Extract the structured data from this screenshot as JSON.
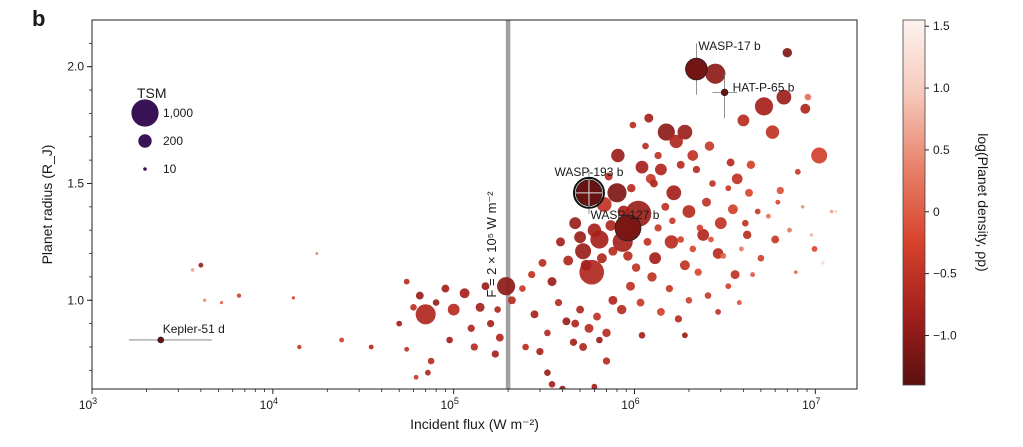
{
  "panel_label": "b",
  "chart_data": {
    "type": "scatter",
    "xlabel": "Incident flux (W m⁻²)",
    "ylabel": "Planet radius (R_J)",
    "x_scale": "log",
    "xlim": [
      1000,
      17000000
    ],
    "ylim": [
      0.62,
      2.2
    ],
    "x_ticks": [
      {
        "value": 1000,
        "base": "10",
        "exp": "3"
      },
      {
        "value": 10000,
        "base": "10",
        "exp": "4"
      },
      {
        "value": 100000,
        "base": "10",
        "exp": "5"
      },
      {
        "value": 1000000,
        "base": "10",
        "exp": "6"
      },
      {
        "value": 10000000,
        "base": "10",
        "exp": "7"
      }
    ],
    "y_ticks": [
      "1.0",
      "1.5",
      "2.0"
    ],
    "colorbar": {
      "label": "log(Planet density, ρp)",
      "range": [
        -1.4,
        1.55
      ],
      "ticks": [
        "1.5",
        "1.0",
        "0.5",
        "0",
        "−0.5",
        "−1.0"
      ],
      "colors": [
        "#5a1010",
        "#a5201c",
        "#d8452e",
        "#e9836c",
        "#f6c9bc",
        "#fdf3ef"
      ]
    },
    "size_legend": {
      "title": "TSM",
      "entries": [
        {
          "label": "1,000",
          "tsm": 1000
        },
        {
          "label": "200",
          "tsm": 200
        },
        {
          "label": "10",
          "tsm": 10
        }
      ],
      "color": "#3a1356"
    },
    "reference_line": {
      "x": 200000,
      "label": "F = 2 × 10⁵ W m⁻²",
      "color": "#a0a0a0"
    },
    "highlighted": [
      {
        "name": "WASP-17 b",
        "x": 2200000,
        "y": 1.99,
        "tsm": 600,
        "logrho": -1.2
      },
      {
        "name": "HAT-P-65 b",
        "x": 3150000,
        "y": 1.89,
        "tsm": 40,
        "logrho": -1.25
      },
      {
        "name": "WASP-193 b",
        "x": 560000,
        "y": 1.46,
        "tsm": 900,
        "logrho": -1.3
      },
      {
        "name": "WASP-127 b",
        "x": 920000,
        "y": 1.31,
        "tsm": 900,
        "logrho": -1.15
      },
      {
        "name": "Kepler-51 d",
        "x": 2400,
        "y": 0.83,
        "tsm": 30,
        "logrho": -1.3
      }
    ],
    "points": [
      [
        2800000,
        1.97,
        500,
        -1.0
      ],
      [
        7000000,
        2.06,
        90,
        -1.1
      ],
      [
        6700000,
        1.87,
        250,
        -0.9
      ],
      [
        5200000,
        1.83,
        400,
        -0.8
      ],
      [
        8800000,
        1.82,
        100,
        -0.7
      ],
      [
        9100000,
        1.87,
        40,
        0.2
      ],
      [
        10500000,
        1.62,
        300,
        -0.3
      ],
      [
        5800000,
        1.72,
        200,
        -0.5
      ],
      [
        4000000,
        1.77,
        150,
        -0.6
      ],
      [
        1900000,
        1.72,
        250,
        -0.9
      ],
      [
        1500000,
        1.72,
        350,
        -1.0
      ],
      [
        1200000,
        1.78,
        80,
        -0.8
      ],
      [
        980000,
        1.75,
        40,
        -0.6
      ],
      [
        1700000,
        1.68,
        200,
        -0.7
      ],
      [
        2100000,
        1.62,
        120,
        -0.5
      ],
      [
        2600000,
        1.66,
        90,
        -0.4
      ],
      [
        3400000,
        1.59,
        60,
        -0.6
      ],
      [
        4400000,
        1.58,
        70,
        -0.3
      ],
      [
        3700000,
        1.52,
        120,
        -0.5
      ],
      [
        1400000,
        1.56,
        150,
        -0.7
      ],
      [
        1100000,
        1.57,
        180,
        -0.8
      ],
      [
        810000,
        1.62,
        200,
        -0.9
      ],
      [
        720000,
        1.53,
        60,
        -0.6
      ],
      [
        680000,
        1.41,
        250,
        -0.5
      ],
      [
        800000,
        1.46,
        450,
        -1.1
      ],
      [
        1230000,
        1.52,
        100,
        -0.4
      ],
      [
        1650000,
        1.46,
        250,
        -0.8
      ],
      [
        2000000,
        1.38,
        180,
        -0.6
      ],
      [
        2500000,
        1.42,
        80,
        -0.5
      ],
      [
        3000000,
        1.33,
        150,
        -0.5
      ],
      [
        3500000,
        1.39,
        100,
        -0.3
      ],
      [
        4300000,
        1.46,
        60,
        -0.2
      ],
      [
        6400000,
        1.47,
        50,
        -0.1
      ],
      [
        8000000,
        1.55,
        30,
        -0.4
      ],
      [
        12300000,
        1.38,
        10,
        0.6
      ],
      [
        9900000,
        1.22,
        30,
        -0.2
      ],
      [
        7800000,
        1.12,
        10,
        0.1
      ],
      [
        6000000,
        1.26,
        60,
        -0.4
      ],
      [
        5000000,
        1.18,
        40,
        -0.3
      ],
      [
        4200000,
        1.28,
        70,
        -0.6
      ],
      [
        3600000,
        1.11,
        80,
        -0.5
      ],
      [
        2900000,
        1.2,
        120,
        -0.6
      ],
      [
        2400000,
        1.28,
        150,
        -0.7
      ],
      [
        1900000,
        1.15,
        100,
        -0.5
      ],
      [
        1600000,
        1.25,
        200,
        -0.6
      ],
      [
        1300000,
        1.18,
        150,
        -0.8
      ],
      [
        1050000,
        1.37,
        900,
        -0.9
      ],
      [
        860000,
        1.25,
        500,
        -0.8
      ],
      [
        640000,
        1.26,
        400,
        -0.8
      ],
      [
        580000,
        1.12,
        800,
        -0.7
      ],
      [
        520000,
        1.21,
        300,
        -0.9
      ],
      [
        470000,
        1.33,
        150,
        -0.9
      ],
      [
        430000,
        1.17,
        100,
        -0.7
      ],
      [
        390000,
        1.25,
        80,
        -0.8
      ],
      [
        350000,
        1.08,
        80,
        -0.9
      ],
      [
        310000,
        1.16,
        60,
        -0.6
      ],
      [
        270000,
        1.11,
        50,
        -0.5
      ],
      [
        240000,
        1.05,
        40,
        -0.4
      ],
      [
        210000,
        1.0,
        60,
        -0.6
      ],
      [
        195000,
        1.06,
        400,
        -1.0
      ],
      [
        175000,
        0.96,
        40,
        -0.7
      ],
      [
        160000,
        0.9,
        50,
        -0.8
      ],
      [
        150000,
        1.06,
        60,
        -0.9
      ],
      [
        140000,
        0.97,
        80,
        -0.8
      ],
      [
        125000,
        0.88,
        50,
        -0.7
      ],
      [
        115000,
        1.03,
        100,
        -0.8
      ],
      [
        100000,
        0.96,
        150,
        -0.6
      ],
      [
        90000,
        1.05,
        60,
        -0.8
      ],
      [
        80000,
        0.99,
        40,
        -0.9
      ],
      [
        70000,
        0.94,
        500,
        -0.7
      ],
      [
        65000,
        1.02,
        60,
        -0.9
      ],
      [
        60000,
        0.97,
        40,
        -0.5
      ],
      [
        55000,
        1.08,
        30,
        -0.6
      ],
      [
        50000,
        0.9,
        30,
        -0.8
      ],
      [
        280000,
        0.94,
        60,
        -0.8
      ],
      [
        330000,
        0.86,
        40,
        -0.7
      ],
      [
        380000,
        0.99,
        50,
        -0.6
      ],
      [
        420000,
        0.91,
        60,
        -0.9
      ],
      [
        460000,
        0.82,
        50,
        -0.8
      ],
      [
        500000,
        0.96,
        60,
        -0.7
      ],
      [
        560000,
        0.88,
        80,
        -0.6
      ],
      [
        620000,
        0.93,
        60,
        -0.5
      ],
      [
        700000,
        0.86,
        70,
        -0.6
      ],
      [
        760000,
        1.0,
        80,
        -0.7
      ],
      [
        850000,
        0.96,
        90,
        -0.6
      ],
      [
        950000,
        1.06,
        80,
        -0.5
      ],
      [
        1080000,
        0.99,
        60,
        -0.4
      ],
      [
        1250000,
        1.1,
        90,
        -0.5
      ],
      [
        1400000,
        0.95,
        60,
        -0.3
      ],
      [
        1560000,
        1.05,
        50,
        -0.4
      ],
      [
        1750000,
        0.92,
        50,
        -0.6
      ],
      [
        2000000,
        1.0,
        40,
        -0.3
      ],
      [
        2250000,
        1.12,
        50,
        -0.2
      ],
      [
        2550000,
        1.02,
        40,
        -0.4
      ],
      [
        2900000,
        0.95,
        30,
        -0.5
      ],
      [
        3300000,
        1.06,
        30,
        -0.3
      ],
      [
        3800000,
        0.99,
        20,
        -0.1
      ],
      [
        4500000,
        1.11,
        20,
        0.0
      ],
      [
        1900000,
        0.85,
        30,
        -0.9
      ],
      [
        1100000,
        0.85,
        40,
        -0.8
      ],
      [
        640000,
        0.83,
        40,
        -0.9
      ],
      [
        470000,
        0.9,
        60,
        -0.7
      ],
      [
        330000,
        0.69,
        40,
        -0.9
      ],
      [
        350000,
        0.64,
        40,
        -0.8
      ],
      [
        400000,
        0.62,
        40,
        -0.9
      ],
      [
        600000,
        0.63,
        30,
        -0.8
      ],
      [
        700000,
        0.74,
        50,
        -0.6
      ],
      [
        520000,
        0.8,
        60,
        -0.7
      ],
      [
        300000,
        0.78,
        50,
        -0.8
      ],
      [
        250000,
        0.8,
        40,
        -0.6
      ],
      [
        180000,
        0.84,
        60,
        -0.7
      ],
      [
        170000,
        0.77,
        50,
        -0.8
      ],
      [
        130000,
        0.8,
        50,
        -0.6
      ],
      [
        95000,
        0.83,
        40,
        -0.8
      ],
      [
        75000,
        0.74,
        40,
        -0.6
      ],
      [
        72000,
        0.69,
        30,
        -0.7
      ],
      [
        62000,
        0.67,
        20,
        -0.4
      ],
      [
        55000,
        0.79,
        20,
        -0.5
      ],
      [
        35000,
        0.8,
        20,
        -0.6
      ],
      [
        24000,
        0.83,
        20,
        -0.3
      ],
      [
        14000,
        0.8,
        15,
        -0.5
      ],
      [
        6500,
        1.02,
        15,
        -0.3
      ],
      [
        4000,
        1.15,
        20,
        -0.9
      ],
      [
        17500,
        1.2,
        5,
        0.2
      ],
      [
        13000,
        1.01,
        8,
        -0.2
      ],
      [
        5200,
        0.99,
        8,
        0.1
      ],
      [
        4200,
        1.0,
        8,
        0.4
      ],
      [
        3600,
        1.13,
        10,
        0.6
      ],
      [
        1150000,
        1.66,
        40,
        -0.6
      ],
      [
        1280000,
        1.5,
        60,
        -0.7
      ],
      [
        870000,
        1.38,
        150,
        -0.8
      ],
      [
        740000,
        1.32,
        120,
        -0.7
      ],
      [
        600000,
        1.3,
        200,
        -0.8
      ],
      [
        500000,
        1.27,
        150,
        -0.9
      ],
      [
        540000,
        1.15,
        120,
        -0.8
      ],
      [
        660000,
        1.18,
        100,
        -0.7
      ],
      [
        760000,
        1.21,
        80,
        -0.6
      ],
      [
        920000,
        1.19,
        90,
        -0.6
      ],
      [
        1020000,
        1.14,
        70,
        -0.5
      ],
      [
        1180000,
        1.25,
        60,
        -0.5
      ],
      [
        1350000,
        1.31,
        50,
        -0.4
      ],
      [
        1480000,
        1.4,
        60,
        -0.5
      ],
      [
        1620000,
        1.34,
        40,
        -0.4
      ],
      [
        1800000,
        1.26,
        40,
        -0.3
      ],
      [
        2100000,
        1.22,
        40,
        -0.2
      ],
      [
        2300000,
        1.31,
        40,
        -0.3
      ],
      [
        2650000,
        1.26,
        30,
        -0.1
      ],
      [
        3100000,
        1.19,
        30,
        0.1
      ],
      [
        3900000,
        1.22,
        20,
        0.3
      ],
      [
        5500000,
        1.36,
        20,
        0.2
      ],
      [
        7200000,
        1.3,
        20,
        0.3
      ],
      [
        9500000,
        1.28,
        10,
        0.8
      ],
      [
        13000000,
        1.38,
        5,
        1.0
      ],
      [
        11000000,
        1.16,
        10,
        1.2
      ],
      [
        8500000,
        1.4,
        10,
        0.5
      ],
      [
        6200000,
        1.42,
        20,
        -0.2
      ],
      [
        4800000,
        1.38,
        30,
        -0.4
      ],
      [
        4100000,
        1.33,
        40,
        -0.5
      ],
      [
        3300000,
        1.48,
        30,
        -0.4
      ],
      [
        2700000,
        1.5,
        40,
        -0.5
      ],
      [
        2200000,
        1.56,
        50,
        -0.6
      ],
      [
        1800000,
        1.58,
        60,
        -0.6
      ],
      [
        1350000,
        1.62,
        50,
        -0.5
      ],
      [
        960000,
        1.48,
        70,
        -0.6
      ]
    ]
  }
}
